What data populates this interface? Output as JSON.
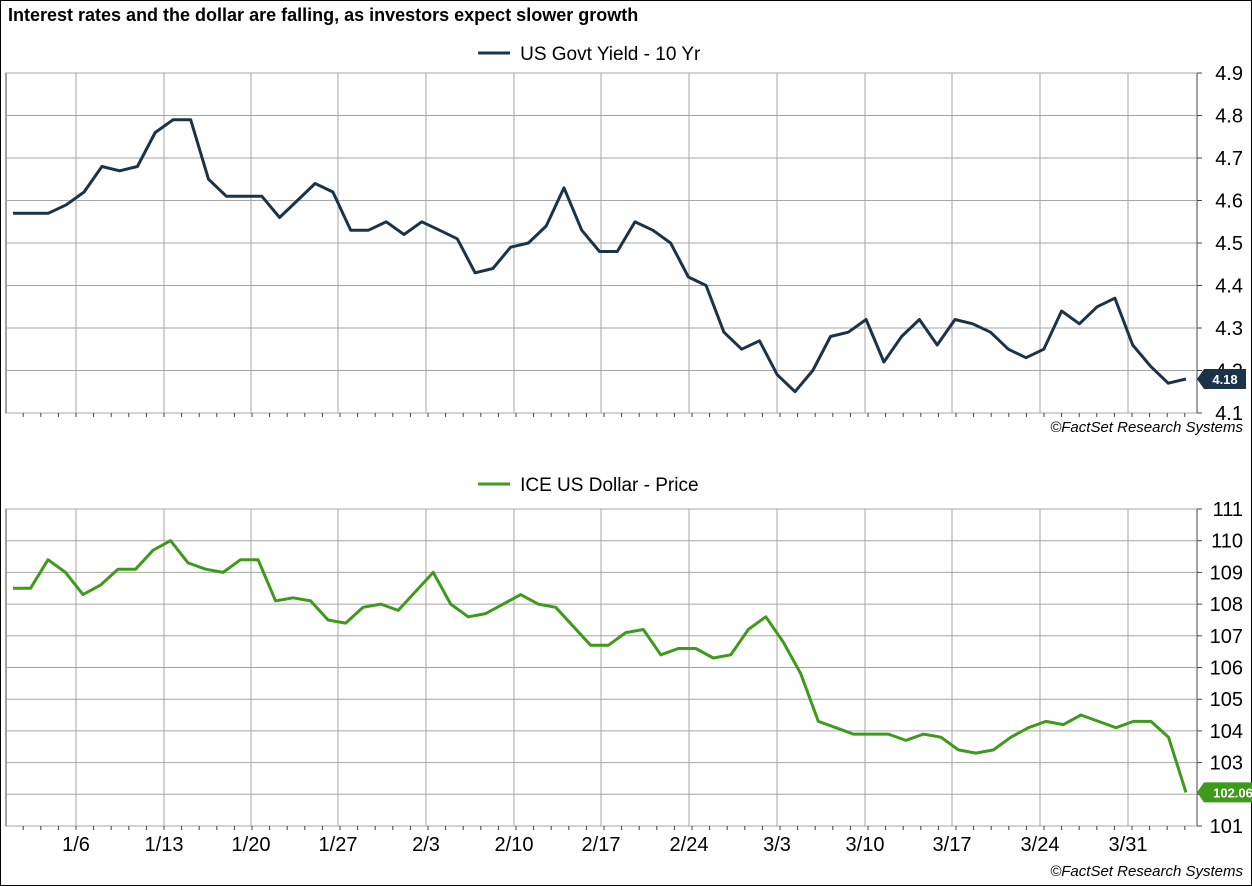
{
  "title": "Interest rates and the dollar are falling, as investors expect slower growth",
  "chart_data": [
    {
      "type": "line",
      "title": "",
      "legend_position": "top-center",
      "grid": true,
      "series": [
        {
          "name": "US Govt Yield - 10 Yr",
          "color": "#1b3349",
          "values": [
            4.57,
            4.57,
            4.57,
            4.59,
            4.62,
            4.68,
            4.67,
            4.68,
            4.76,
            4.79,
            4.79,
            4.65,
            4.61,
            4.61,
            4.61,
            4.56,
            4.6,
            4.64,
            4.62,
            4.53,
            4.53,
            4.55,
            4.52,
            4.55,
            4.53,
            4.51,
            4.43,
            4.44,
            4.49,
            4.5,
            4.54,
            4.63,
            4.53,
            4.48,
            4.48,
            4.55,
            4.53,
            4.5,
            4.42,
            4.4,
            4.29,
            4.25,
            4.27,
            4.19,
            4.15,
            4.2,
            4.28,
            4.29,
            4.32,
            4.22,
            4.28,
            4.32,
            4.26,
            4.32,
            4.31,
            4.29,
            4.25,
            4.23,
            4.25,
            4.34,
            4.31,
            4.35,
            4.37,
            4.26,
            4.21,
            4.17,
            4.18
          ]
        }
      ],
      "last_value_label": "4.18",
      "ylim": [
        4.1,
        4.9
      ],
      "yticks": [
        "4.1",
        "4.2",
        "4.3",
        "4.4",
        "4.5",
        "4.6",
        "4.7",
        "4.8",
        "4.9"
      ],
      "xticks": [],
      "source": "©FactSet Research Systems"
    },
    {
      "type": "line",
      "title": "",
      "legend_position": "top-center",
      "grid": true,
      "series": [
        {
          "name": "ICE US Dollar - Price",
          "color": "#3e9a1a",
          "values": [
            108.5,
            108.5,
            109.4,
            109.0,
            108.3,
            108.6,
            109.1,
            109.1,
            109.7,
            110.0,
            109.3,
            109.1,
            109.0,
            109.4,
            109.4,
            108.1,
            108.2,
            108.1,
            107.5,
            107.4,
            107.9,
            108.0,
            107.8,
            108.4,
            109.0,
            108.0,
            107.6,
            107.7,
            108.0,
            108.3,
            108.0,
            107.9,
            107.3,
            106.7,
            106.7,
            107.1,
            107.2,
            106.4,
            106.6,
            106.6,
            106.3,
            106.4,
            107.2,
            107.6,
            106.8,
            105.8,
            104.3,
            104.1,
            103.9,
            103.9,
            103.9,
            103.7,
            103.9,
            103.8,
            103.4,
            103.3,
            103.4,
            103.8,
            104.1,
            104.3,
            104.2,
            104.5,
            104.3,
            104.1,
            104.3,
            104.3,
            103.8,
            102.06
          ]
        }
      ],
      "last_value_label": "102.06",
      "ylim": [
        101,
        111
      ],
      "yticks": [
        "101",
        "102",
        "103",
        "104",
        "105",
        "106",
        "107",
        "108",
        "109",
        "110",
        "111"
      ],
      "xticks": [
        "1/6",
        "1/13",
        "1/20",
        "1/27",
        "2/3",
        "2/10",
        "2/17",
        "2/24",
        "3/3",
        "3/10",
        "3/17",
        "3/24",
        "3/31"
      ],
      "source": "©FactSet Research Systems"
    }
  ]
}
